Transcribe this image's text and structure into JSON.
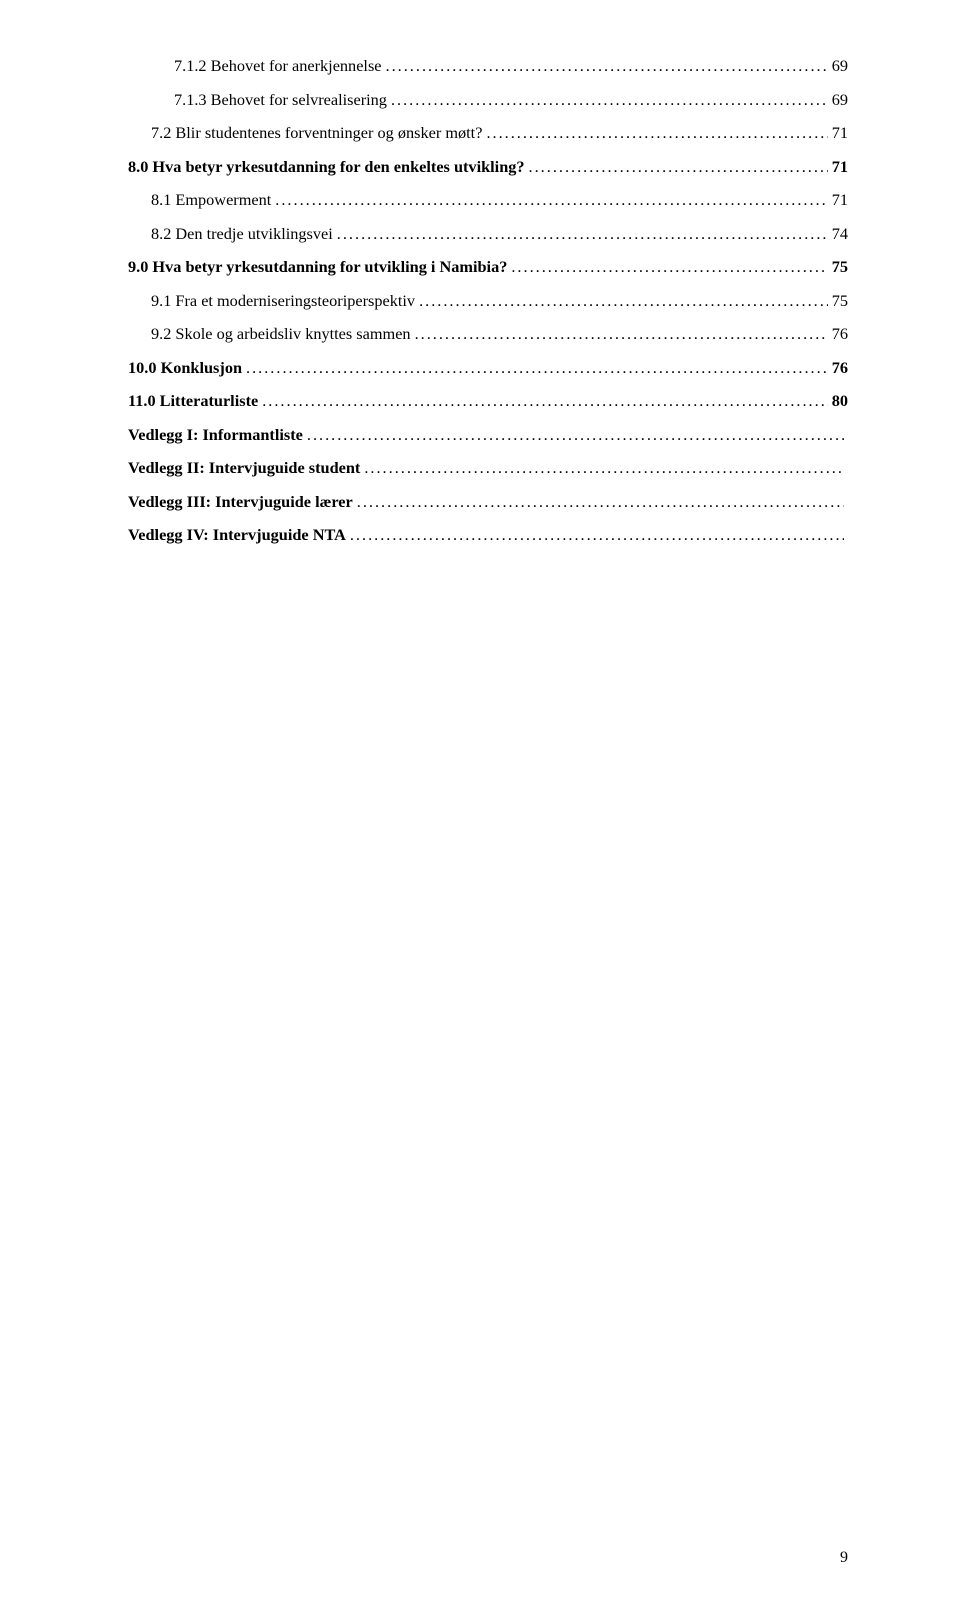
{
  "toc": [
    {
      "label": "7.1.2 Behovet for anerkjennelse",
      "page": "69",
      "level": 2,
      "bold": false
    },
    {
      "label": "7.1.3 Behovet for selvrealisering",
      "page": "69",
      "level": 2,
      "bold": false
    },
    {
      "label": "7.2 Blir studentenes forventninger og ønsker møtt?",
      "page": "71",
      "level": 1,
      "bold": false
    },
    {
      "label": "8.0 Hva betyr yrkesutdanning for den enkeltes utvikling?",
      "page": "71",
      "level": 0,
      "bold": true
    },
    {
      "label": "8.1 Empowerment",
      "page": "71",
      "level": 1,
      "bold": false
    },
    {
      "label": "8.2 Den tredje utviklingsvei",
      "page": "74",
      "level": 1,
      "bold": false
    },
    {
      "label": "9.0 Hva betyr yrkesutdanning for utvikling i Namibia?",
      "page": "75",
      "level": 0,
      "bold": true
    },
    {
      "label": "9.1 Fra et moderniseringsteoriperspektiv",
      "page": "75",
      "level": 1,
      "bold": false
    },
    {
      "label": "9.2 Skole og arbeidsliv knyttes sammen",
      "page": "76",
      "level": 1,
      "bold": false
    },
    {
      "label": "10.0 Konklusjon",
      "page": "76",
      "level": 0,
      "bold": true
    },
    {
      "label": "11.0 Litteraturliste",
      "page": "80",
      "level": 0,
      "bold": true
    },
    {
      "label": "Vedlegg I: Informantliste",
      "page": "",
      "level": 0,
      "bold": true
    },
    {
      "label": "Vedlegg II: Intervjuguide student",
      "page": "",
      "level": 0,
      "bold": true
    },
    {
      "label": "Vedlegg III: Intervjuguide lærer",
      "page": "",
      "level": 0,
      "bold": true
    },
    {
      "label": "Vedlegg IV: Intervjuguide NTA",
      "page": "",
      "level": 0,
      "bold": true
    }
  ],
  "page_number": "9",
  "colors": {
    "text": "#000000",
    "background": "#ffffff"
  },
  "font_family": "Times New Roman",
  "font_size_pt": 12
}
